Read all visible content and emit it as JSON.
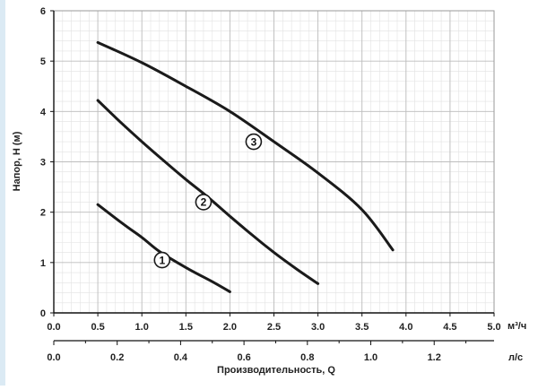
{
  "chart_data": {
    "type": "line",
    "xlabel": "Производительность, Q",
    "ylabel": "Напор, H (м)",
    "x_unit": "м³/ч",
    "x2_unit": "л/с",
    "xlim": [
      0,
      5
    ],
    "ylim": [
      0,
      6
    ],
    "x_ticks": [
      "0.0",
      "0.5",
      "1.0",
      "1.5",
      "2.0",
      "2.5",
      "3.0",
      "3.5",
      "4.0",
      "4.5",
      "5.0"
    ],
    "y_ticks": [
      "0",
      "1",
      "2",
      "3",
      "4",
      "5",
      "6"
    ],
    "x2_ticks": [
      "0.0",
      "0.2",
      "0.4",
      "0.6",
      "0.8",
      "1.0",
      "1.2"
    ],
    "x2_values": [
      0,
      0.2,
      0.4,
      0.6,
      0.8,
      1.0,
      1.2
    ],
    "grid": true,
    "series": [
      {
        "name": "1",
        "x": [
          0.5,
          0.8,
          1.0,
          1.2,
          1.5,
          1.8,
          2.0
        ],
        "y": [
          2.15,
          1.75,
          1.5,
          1.22,
          0.9,
          0.62,
          0.42
        ]
      },
      {
        "name": "2",
        "x": [
          0.5,
          0.75,
          1.0,
          1.25,
          1.5,
          1.75,
          2.0,
          2.25,
          2.5,
          2.75,
          3.0
        ],
        "y": [
          4.22,
          3.8,
          3.4,
          3.02,
          2.65,
          2.3,
          1.92,
          1.55,
          1.2,
          0.88,
          0.58
        ]
      },
      {
        "name": "3",
        "x": [
          0.5,
          1.0,
          1.5,
          2.0,
          2.5,
          3.0,
          3.5,
          3.85
        ],
        "y": [
          5.37,
          4.97,
          4.5,
          4.0,
          3.4,
          2.78,
          2.05,
          1.25
        ]
      }
    ],
    "curve_label_at": [
      {
        "text": "1",
        "x": 1.23,
        "y": 1.05
      },
      {
        "text": "2",
        "x": 1.7,
        "y": 2.2
      },
      {
        "text": "3",
        "x": 2.27,
        "y": 3.4
      }
    ]
  }
}
